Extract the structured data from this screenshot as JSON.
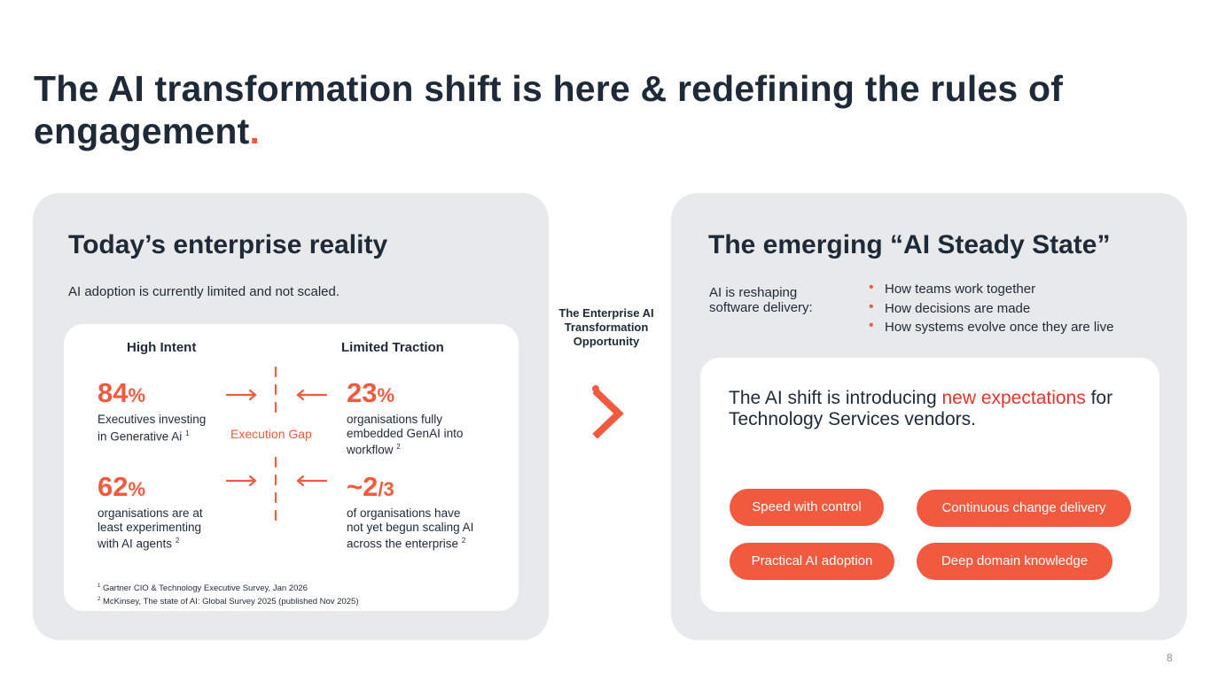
{
  "slide": {
    "title_main": "The AI transformation shift is here & redefining the rules of engagement",
    "title_dot": ".",
    "page_number": "8"
  },
  "left": {
    "heading": "Today’s enterprise reality",
    "subtitle": "AI adoption is currently limited and not scaled.",
    "high_intent": "High Intent",
    "limited_traction": "Limited Traction",
    "gap_label": "Execution Gap",
    "stats": [
      {
        "num": "84",
        "unit": "%",
        "desc": "Executives investing\nin Generative Ai",
        "ref": "1"
      },
      {
        "num": "23",
        "unit": "%",
        "desc": "organisations fully\nembedded GenAI into\nworkflow",
        "ref": "2"
      },
      {
        "num": "62",
        "unit": "%",
        "desc": "organisations are at\nleast experimenting\nwith AI agents",
        "ref": "2"
      },
      {
        "num": "~2",
        "unit": "/3",
        "desc": "of organisations have\nnot yet begun scaling AI\nacross the enterprise",
        "ref": "2"
      }
    ],
    "footnotes": [
      {
        "ref": "1",
        "text": "Gartner CIO & Technology Executive Survey, Jan 2026"
      },
      {
        "ref": "2",
        "text": "McKinsey, The state of AI: Global Survey 2025 (published Nov 2025)"
      }
    ]
  },
  "center": {
    "label": "The Enterprise AI Transformation Opportunity",
    "chevron_icon": "chevron-right-icon"
  },
  "right": {
    "heading": "The emerging “AI Steady State”",
    "lead": "AI is reshaping\nsoftware delivery:",
    "bullets": [
      "How teams work together",
      "How decisions are made",
      "How systems evolve once they are live"
    ],
    "statement_pre": "The AI shift is introducing ",
    "statement_highlight": "new expectations",
    "statement_post": " for Technology Services vendors.",
    "pills": [
      "Speed with control",
      "Continuous change delivery",
      "Practical AI adoption",
      "Deep domain knowledge"
    ]
  },
  "colors": {
    "accent": "#f25a3f",
    "highlight_red": "#e8332a",
    "text_dark": "#1e2a38",
    "panel_bg": "#e8e9ea",
    "card_bg": "#ffffff"
  }
}
